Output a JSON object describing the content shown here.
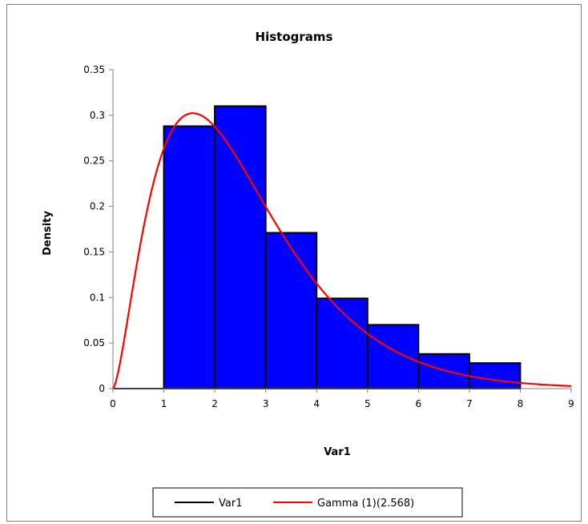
{
  "chart_data": {
    "type": "bar",
    "title": "Histograms",
    "xlabel": "Var1",
    "ylabel": "Density",
    "xlim": [
      0,
      9
    ],
    "ylim": [
      0,
      0.35
    ],
    "x_ticks": [
      "0",
      "1",
      "2",
      "3",
      "4",
      "5",
      "6",
      "7",
      "8",
      "9"
    ],
    "y_ticks": [
      "0",
      "0.05",
      "0.1",
      "0.15",
      "0.2",
      "0.25",
      "0.3",
      "0.35"
    ],
    "grid": false,
    "legend_position": "bottom",
    "histogram": {
      "name": "Var1",
      "bins": [
        {
          "x0": 1,
          "x1": 2,
          "value": 0.288
        },
        {
          "x0": 2,
          "x1": 3,
          "value": 0.31
        },
        {
          "x0": 3,
          "x1": 4,
          "value": 0.171
        },
        {
          "x0": 4,
          "x1": 5,
          "value": 0.099
        },
        {
          "x0": 5,
          "x1": 6,
          "value": 0.07
        },
        {
          "x0": 6,
          "x1": 7,
          "value": 0.038
        },
        {
          "x0": 7,
          "x1": 8,
          "value": 0.028
        }
      ],
      "fill_color": "#0000ff",
      "edge_color": "#000000"
    },
    "curve": {
      "name": "Gamma (1)(2.568)",
      "distribution": "gamma",
      "shape": 2.568,
      "scale": 1,
      "x_range": [
        0,
        9
      ],
      "color": "#ff0000"
    },
    "legend": [
      {
        "label": "Var1",
        "color": "#000000"
      },
      {
        "label": "Gamma (1)(2.568)",
        "color": "#ff0000"
      }
    ]
  }
}
